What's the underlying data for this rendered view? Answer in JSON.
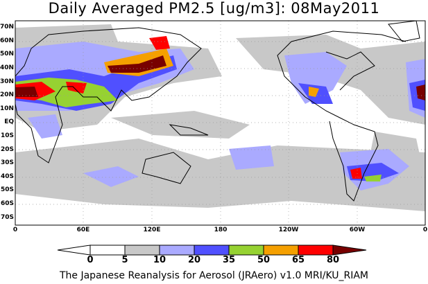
{
  "title": "Daily Averaged PM2.5 [ug/m3]: 08May2011",
  "lat_labels": [
    "70N",
    "60N",
    "50N",
    "40N",
    "30N",
    "20N",
    "10N",
    "EQ",
    "10S",
    "20S",
    "30S",
    "40S",
    "50S",
    "60S",
    "70S"
  ],
  "lon_labels": [
    "0",
    "60E",
    "120E",
    "180",
    "120W",
    "60W",
    "0"
  ],
  "colorbar": {
    "levels": [
      "0",
      "5",
      "10",
      "20",
      "35",
      "50",
      "65",
      "80"
    ],
    "colors": [
      "#ffffff",
      "#ffffff",
      "#c8c8c8",
      "#aaaaff",
      "#5050ff",
      "#96d232",
      "#f5a000",
      "#ff0000",
      "#780000"
    ]
  },
  "credit": "The Japanese Reanalysis for Aerosol (JRAero) v1.0 MRI/KU_RIAM"
}
